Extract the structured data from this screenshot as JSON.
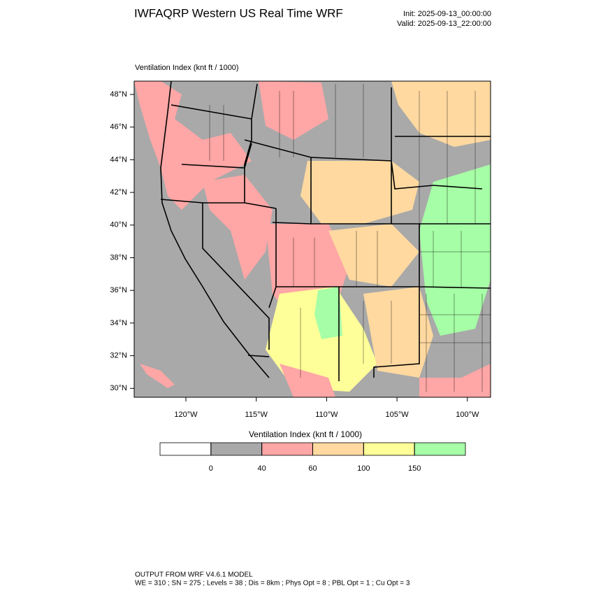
{
  "title": "IWFAQRP Western US Real Time WRF",
  "init": "Init: 2025-09-13_00:00:00",
  "valid": "Valid: 2025-09-13_22:00:00",
  "map": {
    "label": "Ventilation Index   (knt ft / 1000)",
    "lat_labels": [
      "48°N",
      "46°N",
      "44°N",
      "42°N",
      "40°N",
      "38°N",
      "36°N",
      "34°N",
      "32°N",
      "30°N"
    ],
    "lon_labels": [
      "120°W",
      "115°W",
      "110°W",
      "105°W",
      "100°W"
    ]
  },
  "colorbar": {
    "title": "Ventilation Index  (knt ft / 1000)",
    "levels": [
      0,
      40,
      60,
      100,
      150
    ],
    "colors": [
      "#ffffff",
      "#a9a9a9",
      "#ffa6a6",
      "#ffd9a0",
      "#ffff99",
      "#a6ffa6"
    ]
  },
  "footer": {
    "line1": "OUTPUT FROM WRF V4.6.1 MODEL",
    "line2": "WE = 310 ; SN = 275 ; Levels = 38 ; Dis = 8km ; Phys Opt = 8 ; PBL Opt = 1 ; Cu Opt = 3"
  }
}
